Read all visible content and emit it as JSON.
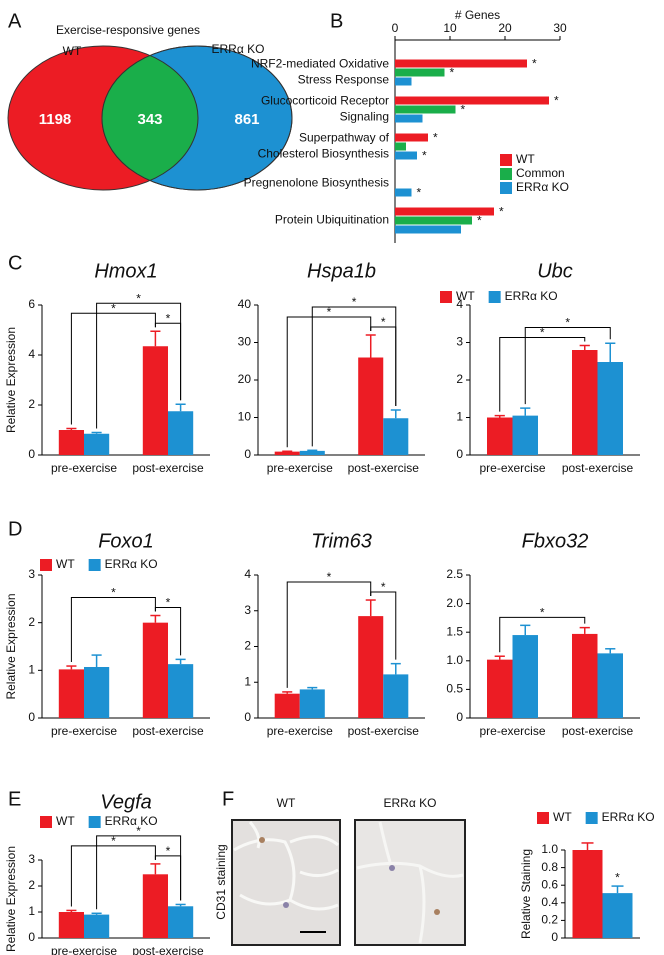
{
  "chart_data": [
    {
      "type": "venn",
      "panel": "A",
      "title": "Exercise-responsive genes",
      "series": [
        {
          "name": "WT",
          "color": "#ec1c24"
        },
        {
          "name": "ERRα KO",
          "color": "#1d91d2"
        }
      ],
      "overlap_color": "#1aae4a",
      "values": [
        1198,
        343,
        861
      ]
    },
    {
      "type": "bar",
      "horizontal": true,
      "panel": "B",
      "xlabel": "# Genes",
      "categories": [
        [
          "NRF2-mediated Oxidative",
          "Stress Response"
        ],
        [
          "Glucocorticoid Receptor",
          "Signaling"
        ],
        [
          "Superpathway of",
          "Cholesterol Biosynthesis"
        ],
        [
          "Pregnenolone Biosynthesis"
        ],
        [
          "Protein Ubiquitination"
        ]
      ],
      "series": [
        {
          "name": "WT",
          "color": "#ec1c24",
          "values": [
            24,
            28,
            6,
            0,
            18
          ],
          "markers": [
            "*",
            "*",
            "*",
            null,
            "*"
          ]
        },
        {
          "name": "Common",
          "color": "#1aae4a",
          "values": [
            9,
            11,
            2,
            0,
            14
          ],
          "markers": [
            "*",
            "*",
            null,
            null,
            "*"
          ]
        },
        {
          "name": "ERRα KO",
          "color": "#1d91d2",
          "values": [
            3,
            5,
            4,
            3,
            12
          ],
          "markers": [
            null,
            null,
            "*",
            "*",
            null
          ]
        }
      ],
      "xlim": [
        0,
        30
      ],
      "xticks": [
        0,
        10,
        20,
        30
      ],
      "legend": "right"
    },
    {
      "type": "bar",
      "panel": "C",
      "title": "Hmox1",
      "ylabel": "Relative Expression",
      "categories": [
        "pre-exercise",
        "post-exercise"
      ],
      "series": [
        {
          "name": "WT",
          "color": "#ec1c24",
          "values": [
            1.0,
            4.35
          ],
          "errors": [
            0.06,
            0.6
          ]
        },
        {
          "name": "ERRα KO",
          "color": "#1d91d2",
          "values": [
            0.85,
            1.75
          ],
          "errors": [
            0.05,
            0.28
          ]
        }
      ],
      "ylim": [
        0,
        6
      ],
      "yticks": [
        0,
        2,
        4,
        6
      ],
      "comparisons": [
        {
          "groups": [
            [
              1,
              0
            ],
            [
              1,
              1
            ]
          ],
          "label": "*"
        },
        {
          "groups": [
            [
              0,
              0
            ],
            [
              1,
              0
            ]
          ],
          "label": "*"
        },
        {
          "groups": [
            [
              0,
              1
            ],
            [
              1,
              1
            ]
          ],
          "label": "*"
        }
      ]
    },
    {
      "type": "bar",
      "title": "Hspa1b",
      "categories": [
        "pre-exercise",
        "post-exercise"
      ],
      "series": [
        {
          "name": "WT",
          "color": "#ec1c24",
          "values": [
            0.9,
            26
          ],
          "errors": [
            0.1,
            6
          ]
        },
        {
          "name": "ERRα KO",
          "color": "#1d91d2",
          "values": [
            1.1,
            9.8
          ],
          "errors": [
            0.15,
            2.2
          ]
        }
      ],
      "ylim": [
        0,
        40
      ],
      "yticks": [
        0,
        10,
        20,
        30,
        40
      ],
      "comparisons": [
        {
          "groups": [
            [
              1,
              0
            ],
            [
              1,
              1
            ]
          ],
          "label": "*"
        },
        {
          "groups": [
            [
              0,
              0
            ],
            [
              1,
              0
            ]
          ],
          "label": "*"
        },
        {
          "groups": [
            [
              0,
              1
            ],
            [
              1,
              1
            ]
          ],
          "label": "*"
        }
      ]
    },
    {
      "type": "bar",
      "title": "Ubc",
      "categories": [
        "pre-exercise",
        "post-exercise"
      ],
      "series": [
        {
          "name": "WT",
          "color": "#ec1c24",
          "values": [
            1.0,
            2.8
          ],
          "errors": [
            0.05,
            0.12
          ]
        },
        {
          "name": "ERRα KO",
          "color": "#1d91d2",
          "values": [
            1.05,
            2.48
          ],
          "errors": [
            0.2,
            0.5
          ]
        }
      ],
      "ylim": [
        0,
        4
      ],
      "yticks": [
        0,
        1,
        2,
        3,
        4
      ],
      "legend": "top",
      "comparisons": [
        {
          "groups": [
            [
              0,
              0
            ],
            [
              1,
              0
            ]
          ],
          "label": "*"
        },
        {
          "groups": [
            [
              0,
              1
            ],
            [
              1,
              1
            ]
          ],
          "label": "*"
        }
      ]
    },
    {
      "type": "bar",
      "panel": "D",
      "title": "Foxo1",
      "ylabel": "Relative Expression",
      "categories": [
        "pre-exercise",
        "post-exercise"
      ],
      "series": [
        {
          "name": "WT",
          "color": "#ec1c24",
          "values": [
            1.02,
            2.0
          ],
          "errors": [
            0.07,
            0.15
          ]
        },
        {
          "name": "ERRα KO",
          "color": "#1d91d2",
          "values": [
            1.07,
            1.13
          ],
          "errors": [
            0.25,
            0.1
          ]
        }
      ],
      "ylim": [
        0,
        3
      ],
      "yticks": [
        0,
        1,
        2,
        3
      ],
      "legend": "top",
      "comparisons": [
        {
          "groups": [
            [
              1,
              0
            ],
            [
              1,
              1
            ]
          ],
          "label": "*"
        },
        {
          "groups": [
            [
              0,
              0
            ],
            [
              1,
              0
            ]
          ],
          "label": "*"
        }
      ]
    },
    {
      "type": "bar",
      "title": "Trim63",
      "categories": [
        "pre-exercise",
        "post-exercise"
      ],
      "series": [
        {
          "name": "WT",
          "color": "#ec1c24",
          "values": [
            0.68,
            2.85
          ],
          "errors": [
            0.05,
            0.45
          ]
        },
        {
          "name": "ERRα KO",
          "color": "#1d91d2",
          "values": [
            0.8,
            1.22
          ],
          "errors": [
            0.05,
            0.3
          ]
        }
      ],
      "ylim": [
        0,
        4
      ],
      "yticks": [
        0,
        1,
        2,
        3,
        4
      ],
      "comparisons": [
        {
          "groups": [
            [
              1,
              0
            ],
            [
              1,
              1
            ]
          ],
          "label": "*"
        },
        {
          "groups": [
            [
              0,
              0
            ],
            [
              1,
              0
            ]
          ],
          "label": "*"
        }
      ]
    },
    {
      "type": "bar",
      "title": "Fbxo32",
      "categories": [
        "pre-exercise",
        "post-exercise"
      ],
      "series": [
        {
          "name": "WT",
          "color": "#ec1c24",
          "values": [
            1.02,
            1.47
          ],
          "errors": [
            0.06,
            0.11
          ]
        },
        {
          "name": "ERRα KO",
          "color": "#1d91d2",
          "values": [
            1.45,
            1.13
          ],
          "errors": [
            0.17,
            0.08
          ]
        }
      ],
      "ylim": [
        0,
        2.5
      ],
      "yticks": [
        0,
        0.5,
        {
          "value": 1,
          "label": "1.0"
        },
        1.5,
        {
          "value": 2,
          "label": "2.0"
        },
        2.5
      ],
      "comparisons": [
        {
          "groups": [
            [
              0,
              0
            ],
            [
              1,
              0
            ]
          ],
          "label": "*"
        }
      ]
    },
    {
      "type": "bar",
      "panel": "E",
      "title": "Vegfa",
      "ylabel": "Relative Expression",
      "categories": [
        "pre-exercise",
        "post-exercise"
      ],
      "series": [
        {
          "name": "WT",
          "color": "#ec1c24",
          "values": [
            1.0,
            2.45
          ],
          "errors": [
            0.06,
            0.4
          ]
        },
        {
          "name": "ERRα KO",
          "color": "#1d91d2",
          "values": [
            0.9,
            1.22
          ],
          "errors": [
            0.05,
            0.07
          ]
        }
      ],
      "ylim": [
        0,
        3
      ],
      "yticks": [
        0,
        1,
        2,
        3
      ],
      "legend": "top",
      "comparisons": [
        {
          "groups": [
            [
              1,
              0
            ],
            [
              1,
              1
            ]
          ],
          "label": "*"
        },
        {
          "groups": [
            [
              0,
              0
            ],
            [
              1,
              0
            ]
          ],
          "label": "*"
        },
        {
          "groups": [
            [
              0,
              1
            ],
            [
              1,
              1
            ]
          ],
          "label": "*"
        }
      ]
    },
    {
      "type": "bar",
      "panel": "F",
      "ylabel": "Relative Staining",
      "images": [
        "WT",
        "ERRα KO"
      ],
      "image_ylabel": "CD31 staining",
      "categories": [
        null
      ],
      "series": [
        {
          "name": "WT",
          "color": "#ec1c24",
          "values": [
            1.0
          ],
          "errors": [
            0.08
          ],
          "markers": [
            null
          ]
        },
        {
          "name": "ERRα KO",
          "color": "#1d91d2",
          "values": [
            0.51
          ],
          "errors": [
            0.08
          ],
          "markers": [
            "*"
          ]
        }
      ],
      "ylim": [
        0,
        1
      ],
      "yticks": [
        0,
        0.2,
        0.4,
        0.6,
        0.8,
        {
          "value": 1,
          "label": "1.0"
        }
      ],
      "legend": "top"
    }
  ]
}
